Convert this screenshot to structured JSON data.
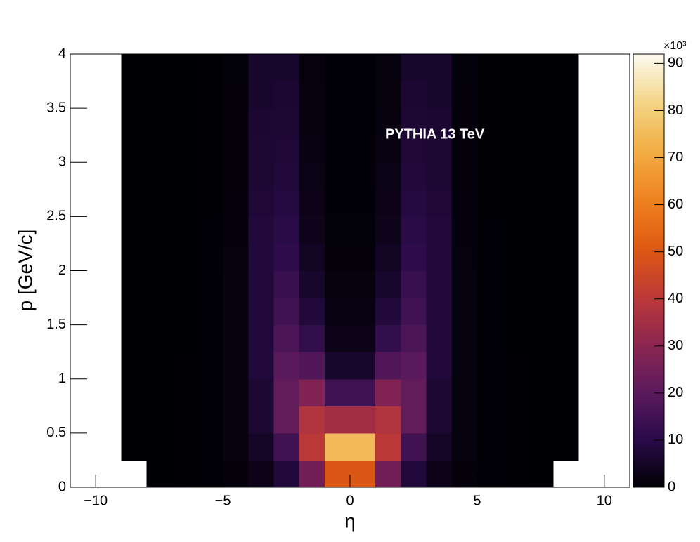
{
  "chart_data": {
    "type": "heatmap",
    "x_label": "η",
    "y_label": "p [GeV/c]",
    "annotation": "PYTHIA 13 TeV",
    "z_exponent_label": "×10³",
    "xlim": [
      -11,
      11
    ],
    "ylim": [
      0,
      4
    ],
    "zlim": [
      0,
      92000
    ],
    "xticks": [
      {
        "value": -10,
        "label": "−10"
      },
      {
        "value": -5,
        "label": "−5"
      },
      0,
      5,
      10
    ],
    "yticks": [
      0,
      0.5,
      1,
      1.5,
      2,
      2.5,
      3,
      3.5,
      4
    ],
    "zticks": [
      0,
      {
        "value": 10000,
        "label": "10"
      },
      {
        "value": 20000,
        "label": "20"
      },
      {
        "value": 30000,
        "label": "30"
      },
      {
        "value": 40000,
        "label": "40"
      },
      {
        "value": 50000,
        "label": "50"
      },
      {
        "value": 60000,
        "label": "60"
      },
      {
        "value": 70000,
        "label": "70"
      },
      {
        "value": 80000,
        "label": "80"
      },
      {
        "value": 90000,
        "label": "90"
      }
    ],
    "colorscale": [
      "#000004",
      "#2a0b4a",
      "#5c1a5c",
      "#8d2650",
      "#be3a36",
      "#df5a12",
      "#ef8320",
      "#f2ad44",
      "#f3d585",
      "#fcfaf0"
    ],
    "empty_color": "#ffffff",
    "xbins": [
      -11,
      -10,
      -9,
      -8,
      -7,
      -6,
      -5,
      -4,
      -3,
      -2,
      -1,
      0,
      1,
      2,
      3,
      4,
      5,
      6,
      7,
      8,
      9,
      10,
      11
    ],
    "ybins": [
      0,
      0.25,
      0.5,
      0.75,
      1,
      1.25,
      1.5,
      1.75,
      2,
      2.25,
      2.5,
      2.75,
      3,
      3.25,
      3.5,
      3.75,
      4
    ],
    "z": [
      [
        0,
        0,
        0,
        10,
        80,
        300,
        1000,
        3000,
        8000,
        25000,
        50000,
        50000,
        25000,
        8000,
        3000,
        1000,
        300,
        80,
        10,
        0,
        0,
        0
      ],
      [
        0,
        0,
        2,
        15,
        100,
        400,
        1500,
        5000,
        15000,
        40000,
        75000,
        75000,
        40000,
        15000,
        5000,
        1500,
        400,
        100,
        15,
        2,
        0,
        0
      ],
      [
        0,
        0,
        2,
        15,
        100,
        400,
        1500,
        7000,
        22000,
        38000,
        35000,
        35000,
        38000,
        22000,
        7000,
        1500,
        400,
        100,
        15,
        2,
        0,
        0
      ],
      [
        0,
        0,
        2,
        12,
        90,
        350,
        1500,
        7000,
        22000,
        28000,
        15000,
        15000,
        28000,
        22000,
        7000,
        1500,
        350,
        90,
        12,
        2,
        0,
        0
      ],
      [
        0,
        0,
        2,
        10,
        80,
        300,
        1500,
        8000,
        20000,
        18000,
        6000,
        6000,
        18000,
        20000,
        8000,
        1500,
        300,
        80,
        10,
        2,
        0,
        0
      ],
      [
        0,
        0,
        2,
        10,
        70,
        300,
        1500,
        8000,
        17000,
        12000,
        3000,
        3000,
        12000,
        17000,
        8000,
        1500,
        300,
        70,
        10,
        2,
        0,
        0
      ],
      [
        0,
        0,
        2,
        10,
        60,
        250,
        1500,
        8000,
        15000,
        8000,
        2000,
        2000,
        8000,
        15000,
        8000,
        1500,
        250,
        60,
        10,
        2,
        0,
        0
      ],
      [
        0,
        0,
        2,
        10,
        60,
        250,
        1400,
        8000,
        13000,
        6000,
        1500,
        1500,
        6000,
        13000,
        8000,
        1400,
        250,
        60,
        10,
        2,
        0,
        0
      ],
      [
        0,
        0,
        2,
        10,
        55,
        220,
        1300,
        8000,
        11000,
        4500,
        1000,
        1000,
        4500,
        11000,
        8000,
        1300,
        220,
        55,
        10,
        2,
        0,
        0
      ],
      [
        0,
        0,
        2,
        10,
        55,
        220,
        1200,
        8000,
        10000,
        3500,
        800,
        800,
        3500,
        10000,
        8000,
        1200,
        220,
        55,
        10,
        2,
        0,
        0
      ],
      [
        0,
        0,
        2,
        10,
        50,
        200,
        1100,
        7500,
        9000,
        3000,
        600,
        600,
        3000,
        9000,
        7500,
        1100,
        200,
        50,
        10,
        2,
        0,
        0
      ],
      [
        0,
        0,
        2,
        10,
        50,
        200,
        1000,
        7000,
        8000,
        2500,
        500,
        500,
        2500,
        8000,
        7000,
        1000,
        200,
        50,
        10,
        2,
        0,
        0
      ],
      [
        0,
        0,
        2,
        10,
        50,
        200,
        1000,
        7000,
        7500,
        2000,
        400,
        400,
        2000,
        7500,
        7000,
        1000,
        200,
        50,
        10,
        2,
        0,
        0
      ],
      [
        0,
        0,
        2,
        10,
        50,
        200,
        900,
        6500,
        7000,
        1800,
        350,
        350,
        1800,
        7000,
        6500,
        900,
        200,
        50,
        10,
        2,
        0,
        0
      ],
      [
        0,
        0,
        2,
        10,
        45,
        180,
        900,
        6000,
        6500,
        1500,
        300,
        300,
        1500,
        6500,
        6000,
        900,
        180,
        45,
        10,
        2,
        0,
        0
      ],
      [
        0,
        0,
        2,
        10,
        45,
        180,
        800,
        6000,
        6000,
        1300,
        250,
        250,
        1300,
        6000,
        6000,
        800,
        180,
        45,
        10,
        2,
        0,
        0
      ]
    ]
  }
}
